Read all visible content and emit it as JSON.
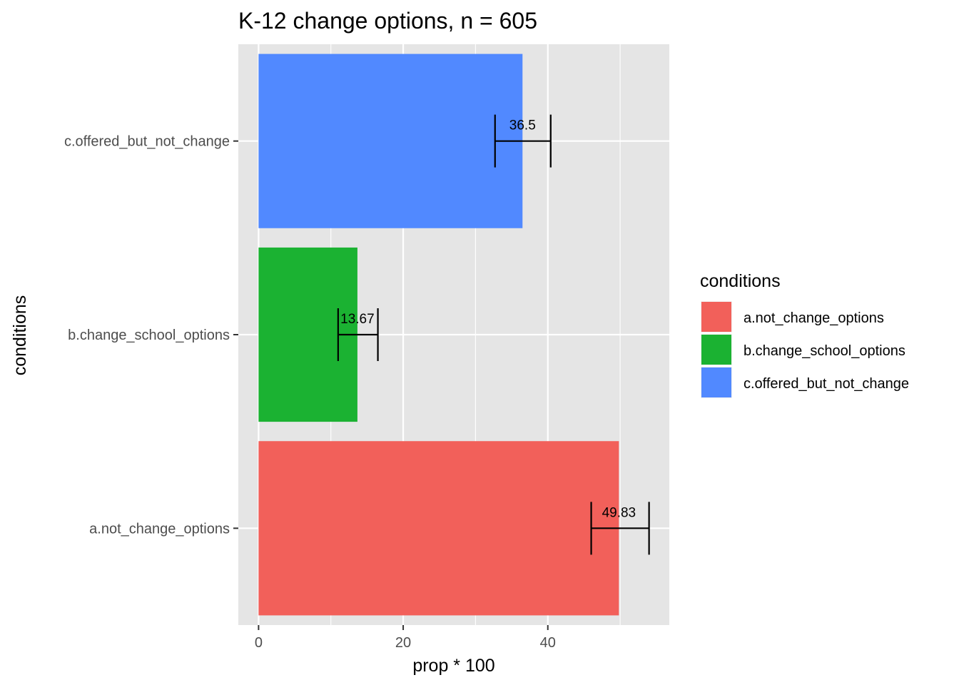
{
  "chart_data": {
    "type": "bar",
    "orientation": "horizontal",
    "title": "K-12 change options, n = 605",
    "xlabel": "prop * 100",
    "ylabel": "conditions",
    "xlim": [
      -2.8,
      56.8
    ],
    "x_ticks": [
      0,
      20,
      40
    ],
    "grid": true,
    "legend": {
      "title": "conditions",
      "placement": "right"
    },
    "categories": [
      "a.not_change_options",
      "b.change_school_options",
      "c.offered_but_not_change"
    ],
    "values": [
      49.83,
      13.67,
      36.5
    ],
    "value_labels": [
      "49.83",
      "13.67",
      "36.5"
    ],
    "error_bars": [
      {
        "low": 46.0,
        "high": 54.0
      },
      {
        "low": 11.0,
        "high": 16.5
      },
      {
        "low": 32.7,
        "high": 40.4
      }
    ],
    "colors": [
      "#F8766D",
      "#00BA38",
      "#619CFF"
    ],
    "colors_rendered": [
      "#F2605A",
      "#1BB232",
      "#5189FF"
    ]
  },
  "style": {
    "panel_background": "#E5E5E5",
    "grid_color": "#FFFFFF",
    "tick_label_color": "#4D4D4D"
  }
}
